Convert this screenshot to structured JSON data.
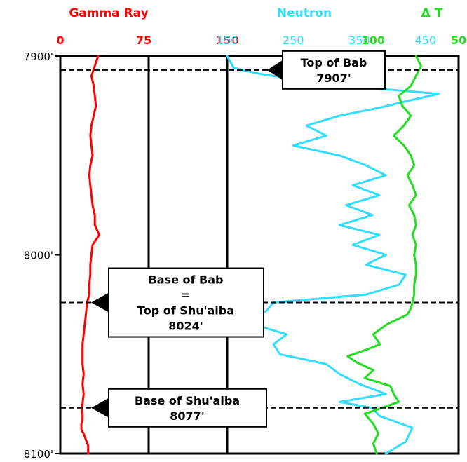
{
  "chart_data": {
    "type": "line",
    "y_axis": {
      "range": [
        7900,
        8100
      ],
      "ticks": [
        {
          "value": 7900,
          "label": "7900'"
        },
        {
          "value": 8000,
          "label": "8000'"
        },
        {
          "value": 8100,
          "label": "8100'"
        }
      ],
      "inverted": true
    },
    "tracks": [
      {
        "name": "Gamma Ray",
        "color": "#ff0000",
        "range": [
          0,
          150
        ],
        "tick_labels": [
          {
            "value": 0,
            "label": "0"
          },
          {
            "value": 75,
            "label": "75"
          },
          {
            "value": 150,
            "label": "150"
          }
        ],
        "x": [
          34,
          31,
          28,
          30,
          31,
          32,
          30,
          28,
          27,
          28,
          29,
          27,
          26,
          27,
          28,
          29,
          31,
          31,
          35,
          29,
          28,
          27,
          27,
          26,
          26,
          24,
          23,
          22,
          21,
          20,
          20,
          20,
          21,
          20,
          21,
          20,
          19,
          20,
          20,
          19,
          19,
          21,
          23,
          25,
          25
        ],
        "y": [
          7900,
          7905,
          7910,
          7915,
          7920,
          7925,
          7930,
          7935,
          7940,
          7945,
          7950,
          7955,
          7960,
          7965,
          7970,
          7975,
          7980,
          7985,
          7990,
          7995,
          8000,
          8005,
          8010,
          8015,
          8020,
          8024,
          8030,
          8035,
          8040,
          8045,
          8050,
          8055,
          8060,
          8065,
          8070,
          8075,
          8077,
          8080,
          8083,
          8085,
          8088,
          8090,
          8093,
          8096,
          8100
        ]
      },
      {
        "name": "Neutron",
        "color": "#33ddff",
        "range": [
          150,
          500
        ],
        "tick_labels": [
          {
            "value": 150,
            "label": "150"
          },
          {
            "value": 250,
            "label": "250"
          },
          {
            "value": 350,
            "label": "350"
          },
          {
            "value": 450,
            "label": "450"
          }
        ],
        "x": [
          150,
          155,
          160,
          200,
          260,
          330,
          470,
          430,
          380,
          320,
          270,
          300,
          250,
          320,
          360,
          390,
          340,
          380,
          330,
          370,
          320,
          380,
          340,
          390,
          360,
          420,
          410,
          360,
          220,
          210,
          190,
          200,
          240,
          220,
          230,
          300,
          320,
          350,
          390,
          320,
          370,
          380,
          430,
          420,
          390
        ],
        "y": [
          7900,
          7903,
          7906,
          7909,
          7912,
          7915,
          7919,
          7922,
          7926,
          7930,
          7935,
          7940,
          7945,
          7950,
          7955,
          7960,
          7965,
          7970,
          7975,
          7980,
          7985,
          7990,
          7995,
          8000,
          8005,
          8010,
          8015,
          8020,
          8024,
          8028,
          8032,
          8036,
          8040,
          8045,
          8050,
          8055,
          8060,
          8065,
          8070,
          8074,
          8077,
          8081,
          8087,
          8094,
          8100
        ]
      },
      {
        "name": "Δ T",
        "color": "#22dd22",
        "range": [
          140,
          50
        ],
        "tick_labels": [
          {
            "value": 100,
            "label": "100"
          },
          {
            "value": 50,
            "label": "50"
          }
        ],
        "x": [
          75,
          72,
          75,
          78,
          85,
          83,
          78,
          82,
          88,
          82,
          78,
          76,
          80,
          77,
          75,
          79,
          76,
          75,
          77,
          75,
          76,
          75,
          75,
          76,
          76,
          77,
          78,
          80,
          92,
          100,
          96,
          105,
          115,
          110,
          100,
          105,
          90,
          88,
          85,
          95,
          105,
          100,
          97,
          100,
          98
        ],
        "y": [
          7900,
          7905,
          7910,
          7915,
          7920,
          7925,
          7930,
          7935,
          7940,
          7945,
          7950,
          7955,
          7960,
          7965,
          7970,
          7975,
          7980,
          7985,
          7990,
          7995,
          8000,
          8005,
          8010,
          8015,
          8020,
          8024,
          8027,
          8030,
          8035,
          8040,
          8045,
          8048,
          8051,
          8054,
          8058,
          8062,
          8066,
          8070,
          8074,
          8077,
          8080,
          8085,
          8090,
          8095,
          8100
        ]
      }
    ],
    "horizons": [
      {
        "depth": 7907,
        "label_lines": [
          "Top of Bab",
          "7907'"
        ]
      },
      {
        "depth": 8024,
        "label_lines": [
          "Base of Bab",
          "=",
          "Top of Shu'aiba",
          "8024'"
        ]
      },
      {
        "depth": 8077,
        "label_lines": [
          "Base of Shu'aiba",
          "8077'"
        ]
      }
    ],
    "grid": false
  }
}
